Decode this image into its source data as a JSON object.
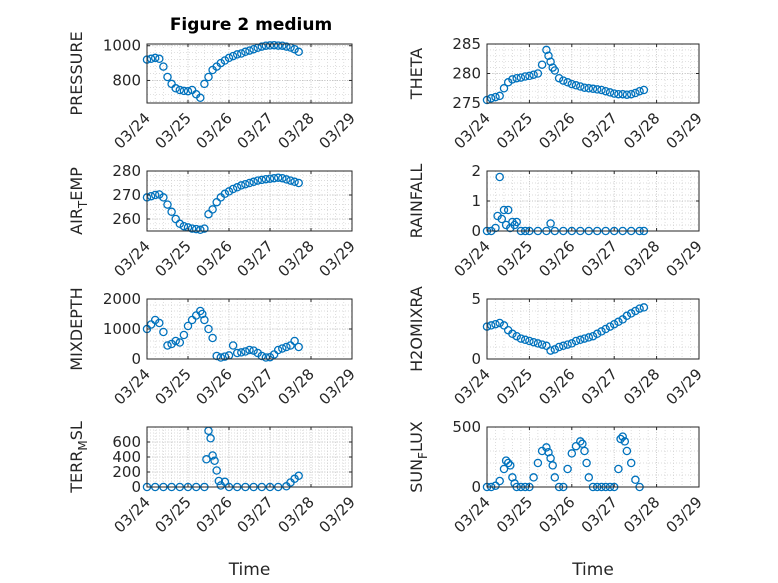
{
  "figure": {
    "title": "Figure 2 medium",
    "marker_color": "#0072BD",
    "x_ticks": [
      "03/24",
      "03/25",
      "03/26",
      "03/27",
      "03/28",
      "03/29"
    ],
    "x_label": "Time"
  },
  "chart_data": [
    {
      "type": "scatter",
      "ylabel": "PRESSURE",
      "ylim": [
        670,
        1010
      ],
      "yticks": [
        800,
        1000
      ],
      "grid": true,
      "x_range": [
        "03/24",
        "03/29"
      ],
      "x": [
        0.0,
        0.1,
        0.2,
        0.3,
        0.4,
        0.5,
        0.6,
        0.7,
        0.8,
        0.9,
        1.0,
        1.1,
        1.2,
        1.3,
        1.4,
        1.5,
        1.6,
        1.7,
        1.8,
        1.9,
        2.0,
        2.1,
        2.2,
        2.3,
        2.4,
        2.5,
        2.6,
        2.7,
        2.8,
        2.9,
        3.0,
        3.1,
        3.2,
        3.3,
        3.4,
        3.5,
        3.6,
        3.7
      ],
      "y": [
        920,
        925,
        930,
        925,
        880,
        820,
        780,
        755,
        745,
        740,
        738,
        745,
        720,
        700,
        780,
        820,
        860,
        880,
        900,
        915,
        930,
        940,
        950,
        955,
        965,
        972,
        980,
        988,
        995,
        1000,
        1002,
        1003,
        1001,
        1000,
        995,
        990,
        980,
        965
      ]
    },
    {
      "type": "scatter",
      "ylabel": "THETA",
      "ylim": [
        275,
        285
      ],
      "yticks": [
        275,
        280,
        285
      ],
      "grid": true,
      "x_range": [
        "03/24",
        "03/29"
      ],
      "x": [
        0.0,
        0.1,
        0.2,
        0.3,
        0.4,
        0.5,
        0.6,
        0.7,
        0.8,
        0.9,
        1.0,
        1.1,
        1.2,
        1.3,
        1.4,
        1.45,
        1.5,
        1.55,
        1.6,
        1.7,
        1.8,
        1.9,
        2.0,
        2.1,
        2.2,
        2.3,
        2.4,
        2.5,
        2.6,
        2.7,
        2.8,
        2.9,
        3.0,
        3.1,
        3.2,
        3.3,
        3.4,
        3.5,
        3.6,
        3.7
      ],
      "y": [
        275.5,
        275.8,
        276.0,
        276.2,
        277.5,
        278.5,
        279.0,
        279.2,
        279.3,
        279.5,
        279.6,
        279.8,
        280.0,
        281.5,
        284.0,
        283.0,
        282.0,
        281.0,
        280.5,
        279.2,
        278.8,
        278.5,
        278.2,
        278.0,
        277.8,
        277.6,
        277.5,
        277.4,
        277.3,
        277.2,
        277.0,
        276.8,
        276.6,
        276.5,
        276.5,
        276.4,
        276.5,
        276.7,
        277.0,
        277.2
      ]
    },
    {
      "type": "scatter",
      "ylabel": "AIR_TEMP",
      "ylim": [
        255,
        280
      ],
      "yticks": [
        260,
        270,
        280
      ],
      "grid": true,
      "x_range": [
        "03/24",
        "03/29"
      ],
      "x": [
        0.0,
        0.1,
        0.2,
        0.3,
        0.4,
        0.5,
        0.6,
        0.7,
        0.8,
        0.9,
        1.0,
        1.1,
        1.2,
        1.3,
        1.4,
        1.5,
        1.6,
        1.7,
        1.8,
        1.9,
        2.0,
        2.1,
        2.2,
        2.3,
        2.4,
        2.5,
        2.6,
        2.7,
        2.8,
        2.9,
        3.0,
        3.1,
        3.2,
        3.3,
        3.4,
        3.5,
        3.6,
        3.7
      ],
      "y": [
        269,
        269.5,
        270,
        270.2,
        269,
        266,
        263,
        260,
        258,
        257,
        256.5,
        256,
        255.8,
        255.5,
        256,
        262,
        264,
        267,
        269,
        270.5,
        271.5,
        272.5,
        273.2,
        274,
        274.5,
        275,
        275.5,
        276,
        276.3,
        276.6,
        276.8,
        277,
        277.2,
        277,
        276.5,
        276,
        275.5,
        275
      ]
    },
    {
      "type": "scatter",
      "ylabel": "RAINFALL",
      "ylim": [
        0,
        2
      ],
      "yticks": [
        0,
        1,
        2
      ],
      "grid": true,
      "x_range": [
        "03/24",
        "03/29"
      ],
      "x": [
        0.0,
        0.1,
        0.2,
        0.25,
        0.3,
        0.35,
        0.4,
        0.45,
        0.5,
        0.55,
        0.6,
        0.65,
        0.7,
        0.8,
        0.9,
        1.0,
        1.2,
        1.4,
        1.5,
        1.6,
        1.8,
        2.0,
        2.2,
        2.4,
        2.6,
        2.8,
        3.0,
        3.2,
        3.4,
        3.6,
        3.7
      ],
      "y": [
        0,
        0,
        0.1,
        0.5,
        1.8,
        0.4,
        0.7,
        0.2,
        0.7,
        0.1,
        0.3,
        0.2,
        0.3,
        0,
        0,
        0,
        0,
        0,
        0.25,
        0,
        0,
        0,
        0,
        0,
        0,
        0,
        0,
        0,
        0,
        0,
        0
      ]
    },
    {
      "type": "scatter",
      "ylabel": "MIXDEPTH",
      "ylim": [
        0,
        2000
      ],
      "yticks": [
        0,
        1000,
        2000
      ],
      "grid": true,
      "x_range": [
        "03/24",
        "03/29"
      ],
      "x": [
        0.0,
        0.1,
        0.2,
        0.3,
        0.4,
        0.5,
        0.6,
        0.7,
        0.8,
        0.9,
        1.0,
        1.1,
        1.2,
        1.3,
        1.35,
        1.4,
        1.5,
        1.6,
        1.7,
        1.8,
        1.9,
        2.0,
        2.1,
        2.2,
        2.3,
        2.4,
        2.5,
        2.6,
        2.7,
        2.8,
        2.9,
        3.0,
        3.1,
        3.2,
        3.3,
        3.4,
        3.5,
        3.6,
        3.7
      ],
      "y": [
        1000,
        1150,
        1300,
        1200,
        900,
        450,
        500,
        600,
        550,
        800,
        1100,
        1300,
        1450,
        1600,
        1500,
        1300,
        1000,
        700,
        100,
        50,
        80,
        120,
        450,
        200,
        220,
        250,
        300,
        280,
        200,
        100,
        50,
        60,
        150,
        300,
        350,
        400,
        450,
        600,
        400
      ]
    },
    {
      "type": "scatter",
      "ylabel": "H2OMIXRA",
      "ylim": [
        0,
        5
      ],
      "yticks": [
        0,
        5
      ],
      "grid": true,
      "x_range": [
        "03/24",
        "03/29"
      ],
      "x": [
        0.0,
        0.1,
        0.2,
        0.3,
        0.4,
        0.5,
        0.6,
        0.7,
        0.8,
        0.9,
        1.0,
        1.1,
        1.2,
        1.3,
        1.4,
        1.5,
        1.6,
        1.7,
        1.8,
        1.9,
        2.0,
        2.1,
        2.2,
        2.3,
        2.4,
        2.5,
        2.6,
        2.7,
        2.8,
        2.9,
        3.0,
        3.1,
        3.2,
        3.3,
        3.4,
        3.5,
        3.6,
        3.7
      ],
      "y": [
        2.7,
        2.8,
        2.9,
        3.0,
        2.8,
        2.4,
        2.1,
        1.9,
        1.7,
        1.6,
        1.5,
        1.4,
        1.3,
        1.2,
        1.1,
        0.7,
        0.8,
        1.0,
        1.1,
        1.2,
        1.3,
        1.5,
        1.6,
        1.7,
        1.8,
        1.9,
        2.1,
        2.3,
        2.5,
        2.7,
        2.9,
        3.1,
        3.3,
        3.6,
        3.8,
        4.0,
        4.2,
        4.3
      ]
    },
    {
      "type": "scatter",
      "ylabel": "TERR_MSL",
      "ylim": [
        0,
        800
      ],
      "yticks": [
        0,
        200,
        400,
        600
      ],
      "grid": true,
      "x_range": [
        "03/24",
        "03/29"
      ],
      "x": [
        0.0,
        0.2,
        0.4,
        0.6,
        0.8,
        1.0,
        1.2,
        1.4,
        1.45,
        1.5,
        1.55,
        1.6,
        1.65,
        1.7,
        1.75,
        1.8,
        1.9,
        2.0,
        2.2,
        2.4,
        2.6,
        2.8,
        3.0,
        3.2,
        3.4,
        3.5,
        3.6,
        3.7
      ],
      "y": [
        0,
        0,
        0,
        0,
        0,
        0,
        0,
        0,
        370,
        750,
        650,
        420,
        350,
        220,
        80,
        20,
        70,
        0,
        0,
        0,
        0,
        0,
        0,
        0,
        10,
        60,
        110,
        150
      ]
    },
    {
      "type": "scatter",
      "ylabel": "SUN_FLUX",
      "ylim": [
        0,
        500
      ],
      "yticks": [
        0,
        500
      ],
      "grid": true,
      "x_range": [
        "03/24",
        "03/29"
      ],
      "x": [
        0.0,
        0.1,
        0.2,
        0.3,
        0.4,
        0.45,
        0.5,
        0.55,
        0.6,
        0.65,
        0.7,
        0.8,
        0.9,
        1.0,
        1.1,
        1.2,
        1.3,
        1.4,
        1.45,
        1.5,
        1.55,
        1.6,
        1.7,
        1.8,
        1.9,
        2.0,
        2.1,
        2.2,
        2.25,
        2.3,
        2.35,
        2.4,
        2.5,
        2.6,
        2.7,
        2.8,
        2.9,
        3.0,
        3.1,
        3.15,
        3.2,
        3.25,
        3.3,
        3.4,
        3.5,
        3.6
      ],
      "y": [
        0,
        0,
        10,
        50,
        150,
        220,
        200,
        180,
        80,
        30,
        0,
        0,
        0,
        0,
        80,
        200,
        300,
        330,
        290,
        240,
        180,
        80,
        0,
        0,
        150,
        280,
        340,
        380,
        360,
        300,
        200,
        80,
        0,
        0,
        0,
        0,
        0,
        0,
        150,
        400,
        420,
        380,
        300,
        200,
        60,
        0
      ]
    }
  ]
}
